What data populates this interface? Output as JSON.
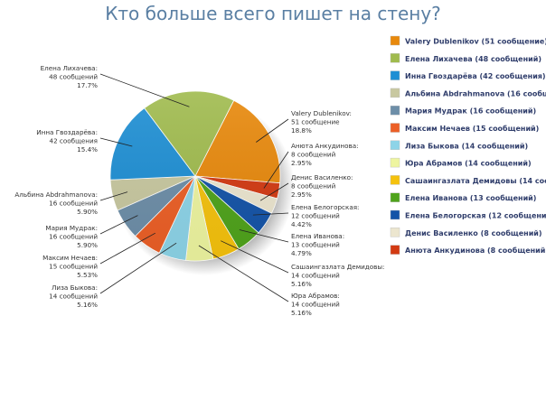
{
  "chart_data": {
    "type": "pie",
    "title": "Кто больше всего пишет на стену?",
    "legend_position": "right",
    "slices": [
      {
        "name": "Valery Dublenikov",
        "value": 51,
        "unit": "сообщение",
        "percent": "18.8%",
        "color": "#e8890c",
        "legend": "Valery Dublenikov (51 сообщение)"
      },
      {
        "name": "Анюта Анкудинова",
        "value": 8,
        "unit": "сообщений",
        "percent": "2.95%",
        "color": "#d33a12",
        "legend": "Анюта Анкудинова (8 сообщений)"
      },
      {
        "name": "Денис Василенко",
        "value": 8,
        "unit": "сообщений",
        "percent": "2.95%",
        "color": "#ece6cf",
        "legend": "Денис Василенко (8 сообщений)"
      },
      {
        "name": "Елена Белогорская",
        "value": 12,
        "unit": "сообщений",
        "percent": "4.42%",
        "color": "#1454a8",
        "legend": "Елена Белогорская (12 сообщений)"
      },
      {
        "name": "Елена Иванова",
        "value": 13,
        "unit": "сообщений",
        "percent": "4.79%",
        "color": "#4fa31b",
        "legend": "Елена Иванова (13 сообщений)"
      },
      {
        "name": "Сашаингазлата Демидовы",
        "value": 14,
        "unit": "сообщений",
        "percent": "5.16%",
        "color": "#f5c20d",
        "legend": "Сашаингазлата Демидовы (14 сообщ"
      },
      {
        "name": "Юра Абрамов",
        "value": 14,
        "unit": "сообщений",
        "percent": "5.16%",
        "color": "#eef5a0",
        "legend": "Юра Абрамов (14 сообщений)"
      },
      {
        "name": "Лиза Быкова",
        "value": 14,
        "unit": "сообщений",
        "percent": "5.16%",
        "color": "#8dd4e8",
        "legend": "Лиза Быкова (14 сообщений)"
      },
      {
        "name": "Максим Нечаев",
        "value": 15,
        "unit": "сообщений",
        "percent": "5.53%",
        "color": "#ec5f26",
        "legend": "Максим Нечаев (15 сообщений)"
      },
      {
        "name": "Мария Мудрак",
        "value": 16,
        "unit": "сообщений",
        "percent": "5.90%",
        "color": "#6d8ea8",
        "legend": "Мария Мудрак (16 сообщений)"
      },
      {
        "name": "Альбина Abdrahmanova",
        "value": 16,
        "unit": "сообщений",
        "percent": "5.90%",
        "color": "#c8c8a0",
        "legend": "Альбина Abdrahmanova (16 сообщен"
      },
      {
        "name": "Инна Гвоздарёва",
        "value": 42,
        "unit": "сообщения",
        "percent": "15.4%",
        "color": "#1e8fd4",
        "legend": "Инна Гвоздарёва (42 сообщения)"
      },
      {
        "name": "Елена Лихачева",
        "value": 48,
        "unit": "сообщений",
        "percent": "17.7%",
        "color": "#a0bb4e",
        "legend": "Елена Лихачева (48 сообщений)"
      }
    ],
    "legend_order": [
      "Valery Dublenikov",
      "Елена Лихачева",
      "Инна Гвоздарёва",
      "Альбина Abdrahmanova",
      "Мария Мудрак",
      "Максим Нечаев",
      "Лиза Быкова",
      "Юра Абрамов",
      "Сашаингазлата Демидовы",
      "Елена Иванова",
      "Елена Белогорская",
      "Денис Василенко",
      "Анюта Анкудинова"
    ]
  }
}
